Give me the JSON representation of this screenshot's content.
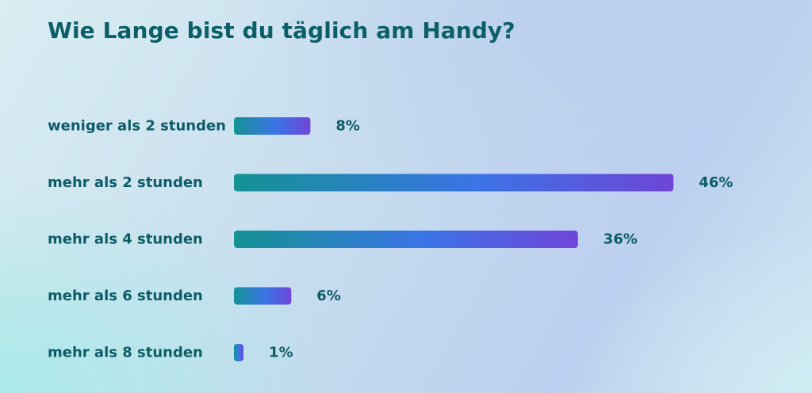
{
  "chart_data": {
    "type": "bar",
    "orientation": "horizontal",
    "title": "Wie Lange bist du täglich am Handy?",
    "categories": [
      "weniger als 2 stunden",
      "mehr als 2 stunden",
      "mehr als 4 stunden",
      "mehr als 6 stunden",
      "mehr als 8 stunden"
    ],
    "values": [
      8,
      46,
      36,
      6,
      1
    ],
    "value_labels": [
      "8%",
      "46%",
      "36%",
      "6%",
      "1%"
    ],
    "unit": "%",
    "grid": false,
    "legend": false
  },
  "colors": {
    "title": "#0c5f67",
    "label": "#0d5c66",
    "bar_gradient_start": "#149294",
    "bar_gradient_mid": "#3b74e6",
    "bar_gradient_end": "#6f45d8"
  }
}
